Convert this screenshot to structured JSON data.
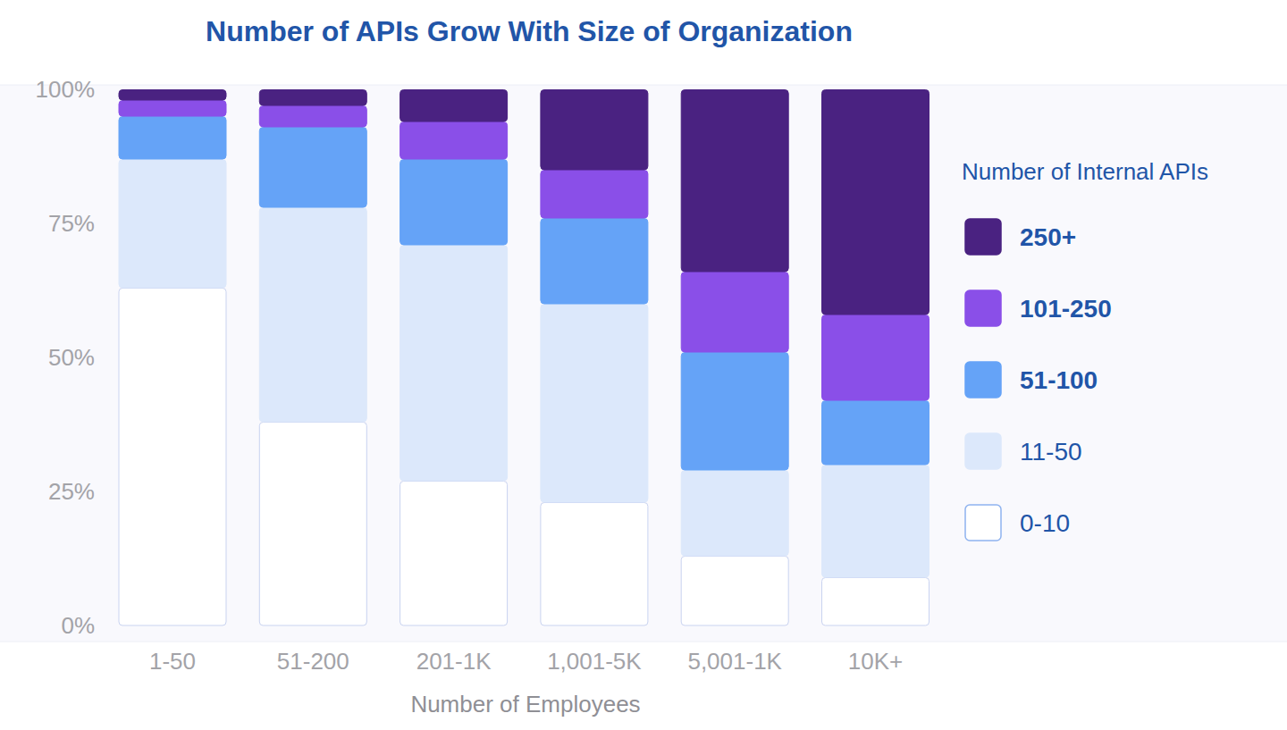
{
  "chart_data": {
    "type": "bar",
    "stacked": true,
    "title": "Number of APIs Grow With Size of Organization",
    "x_label": "Number of Employees",
    "legend_title": "Number of Internal APIs",
    "legend": "right",
    "grid": false,
    "categories": [
      "1-50",
      "51-200",
      "201-1K",
      "1,001-5K",
      "5,001-1K",
      "10K+"
    ],
    "series": [
      {
        "name": "0-10",
        "color": "#ffffff",
        "values": [
          63,
          38,
          27,
          23,
          13,
          9
        ]
      },
      {
        "name": "11-50",
        "color": "#dce8fb",
        "values": [
          24,
          40,
          44,
          37,
          16,
          21
        ]
      },
      {
        "name": "51-100",
        "color": "#65a3f7",
        "values": [
          8,
          15,
          16,
          16,
          22,
          12
        ]
      },
      {
        "name": "101-250",
        "color": "#8a4fe8",
        "values": [
          3,
          4,
          7,
          9,
          15,
          16
        ]
      },
      {
        "name": "250+",
        "color": "#4a2281",
        "values": [
          2,
          3,
          6,
          15,
          34,
          42
        ]
      }
    ],
    "ylim": [
      0,
      100
    ],
    "yticks": [
      {
        "value": 0,
        "label": "0%"
      },
      {
        "value": 25,
        "label": "25%"
      },
      {
        "value": 50,
        "label": "50%"
      },
      {
        "value": 75,
        "label": "75%"
      },
      {
        "value": 100,
        "label": "100%"
      }
    ]
  }
}
